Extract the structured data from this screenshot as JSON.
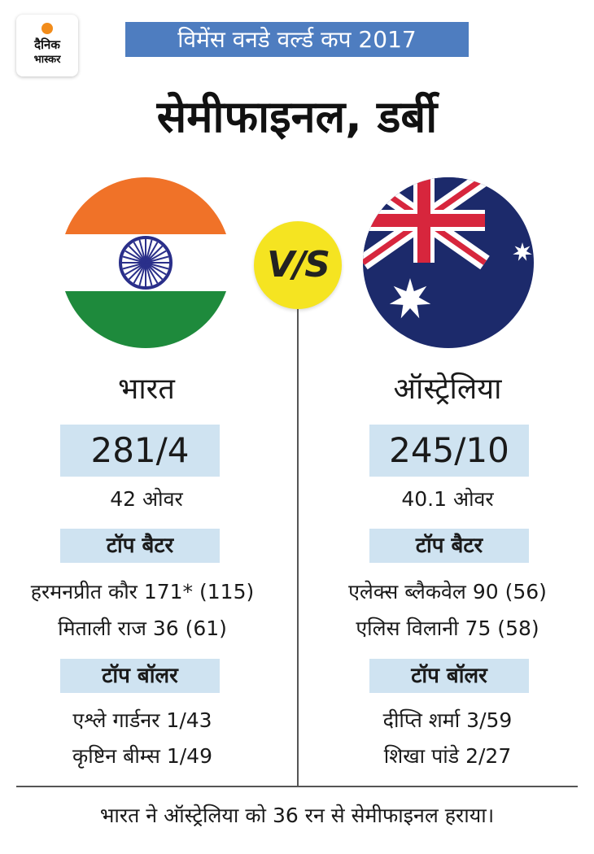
{
  "logo": {
    "line1": "दैनिक",
    "line2": "भास्कर"
  },
  "banner": "विमेंस वनडे वर्ल्ड कप 2017",
  "title": "सेमीफाइनल, डर्बी",
  "vs_label": "V/S",
  "teams": [
    {
      "name": "भारत",
      "flag": "india-flag",
      "score": "281/4",
      "overs": "42 ओवर",
      "top_batters_label": "टॉप बैटर",
      "top_batters": [
        "हरमनप्रीत कौर 171* (115)",
        "मिताली राज 36 (61)"
      ],
      "top_bowlers_label": "टॉप बॉलर",
      "top_bowlers": [
        "एश्ले गार्डनर 1/43",
        "कृष्टिन बीम्स 1/49"
      ]
    },
    {
      "name": "ऑस्ट्रेलिया",
      "flag": "australia-flag",
      "score": "245/10",
      "overs": "40.1 ओवर",
      "top_batters_label": "टॉप बैटर",
      "top_batters": [
        "एलेक्स ब्लैकवेल 90 (56)",
        "एलिस विलानी 75 (58)"
      ],
      "top_bowlers_label": "टॉप बॉलर",
      "top_bowlers": [
        "दीप्ति शर्मा 3/59",
        "शिखा पांडे 2/27"
      ]
    }
  ],
  "footer": "भारत ने ऑस्ट्रेलिया को 36 रन से सेमीफाइनल हराया।",
  "colors": {
    "banner": "#4e7dc0",
    "box": "#cfe3f1",
    "vs": "#f5e421",
    "india_saffron": "#f07228",
    "india_green": "#1e8a3c",
    "chakra": "#2a2f8a",
    "aus_blue": "#1c2a6b",
    "aus_red": "#d7263d"
  }
}
